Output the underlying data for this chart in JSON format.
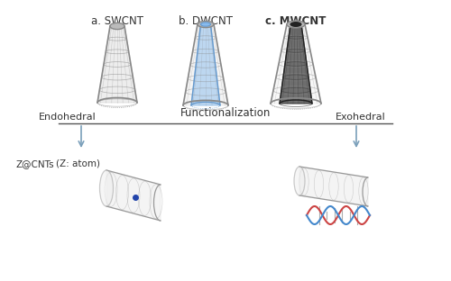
{
  "title_a": "a. SWCNT",
  "title_b": "b. DWCNT",
  "title_c": "c. MWCNT",
  "label_functionalization": "Functionalization",
  "label_endohedral": "Endohedral",
  "label_exohedral": "Exohedral",
  "label_zcnts": "Z@CNTs",
  "label_zatom": "(Z: atom)",
  "bg_color": "#ffffff",
  "line_color": "#555555",
  "arrow_color": "#7a9fba",
  "atom_color": "#2244aa",
  "dna_color1": "#cc4444",
  "dna_color2": "#4488cc"
}
